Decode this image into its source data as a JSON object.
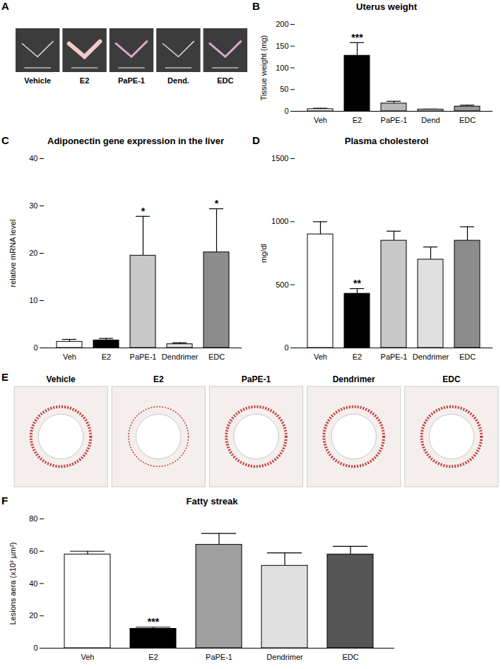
{
  "images": [
    {
      "panel": "A",
      "labels": [
        "Vehicle",
        "E2",
        "PaPE-1",
        "Dend.",
        "EDC"
      ]
    },
    {
      "panel": "E",
      "labels": [
        "Vehicle",
        "E2",
        "PaPE-1",
        "Dendrimer",
        "EDC"
      ]
    }
  ],
  "chart_data": [
    {
      "panel": "B",
      "type": "bar",
      "title": "Uterus weight",
      "y_label": "Tissue weight (mg)",
      "categories": [
        "Veh",
        "E2",
        "PaPE-1",
        "Dend",
        "EDC"
      ],
      "values": [
        5,
        128,
        18,
        4,
        11
      ],
      "errors": [
        2,
        30,
        5,
        1,
        3
      ],
      "colors": [
        "#ffffff",
        "#000000",
        "#b8b8b8",
        "#d0d0d0",
        "#999999"
      ],
      "ylim": [
        0,
        200
      ],
      "yticks": [
        0,
        50,
        100,
        150,
        200
      ],
      "annotations": [
        {
          "category": "E2",
          "text": "***"
        }
      ]
    },
    {
      "panel": "C",
      "type": "bar",
      "title": "Adiponectin gene expression in the liver",
      "y_label": "relative mRNA level",
      "categories": [
        "Veh",
        "E2",
        "PaPE-1",
        "Dendrimer",
        "EDC"
      ],
      "values": [
        1.3,
        1.6,
        19.5,
        0.8,
        20.2
      ],
      "errors": [
        0.5,
        0.4,
        8.3,
        0.3,
        9.2
      ],
      "colors": [
        "#ffffff",
        "#000000",
        "#c8c8c8",
        "#e0e0e0",
        "#8c8c8c"
      ],
      "ylim": [
        0,
        40
      ],
      "yticks": [
        0,
        10,
        20,
        30,
        40
      ],
      "annotations": [
        {
          "category": "PaPE-1",
          "text": "*"
        },
        {
          "category": "EDC",
          "text": "*"
        }
      ]
    },
    {
      "panel": "D",
      "type": "bar",
      "title": "Plasma cholesterol",
      "y_label": "mg/dl",
      "categories": [
        "Veh",
        "E2",
        "PaPE-1",
        "Dendrimer",
        "EDC"
      ],
      "values": [
        900,
        430,
        850,
        700,
        850
      ],
      "errors": [
        100,
        40,
        75,
        100,
        110
      ],
      "colors": [
        "#ffffff",
        "#000000",
        "#c8c8c8",
        "#e0e0e0",
        "#8c8c8c"
      ],
      "ylim": [
        0,
        1500
      ],
      "yticks": [
        0,
        500,
        1000,
        1500
      ],
      "annotations": [
        {
          "category": "E2",
          "text": "**"
        }
      ]
    },
    {
      "panel": "F",
      "type": "bar",
      "title": "Fatty streak",
      "y_label": "Lesions aera (x10³ µm²)",
      "categories": [
        "Veh",
        "E2",
        "PaPE-1",
        "Dendrimer",
        "EDC"
      ],
      "values": [
        58,
        12,
        64,
        51,
        58
      ],
      "errors": [
        2,
        1,
        7,
        8,
        5
      ],
      "colors": [
        "#ffffff",
        "#000000",
        "#a0a0a0",
        "#e0e0e0",
        "#555555"
      ],
      "ylim": [
        0,
        80
      ],
      "yticks": [
        0,
        20,
        40,
        60,
        80
      ],
      "annotations": [
        {
          "category": "E2",
          "text": "***"
        }
      ]
    }
  ]
}
